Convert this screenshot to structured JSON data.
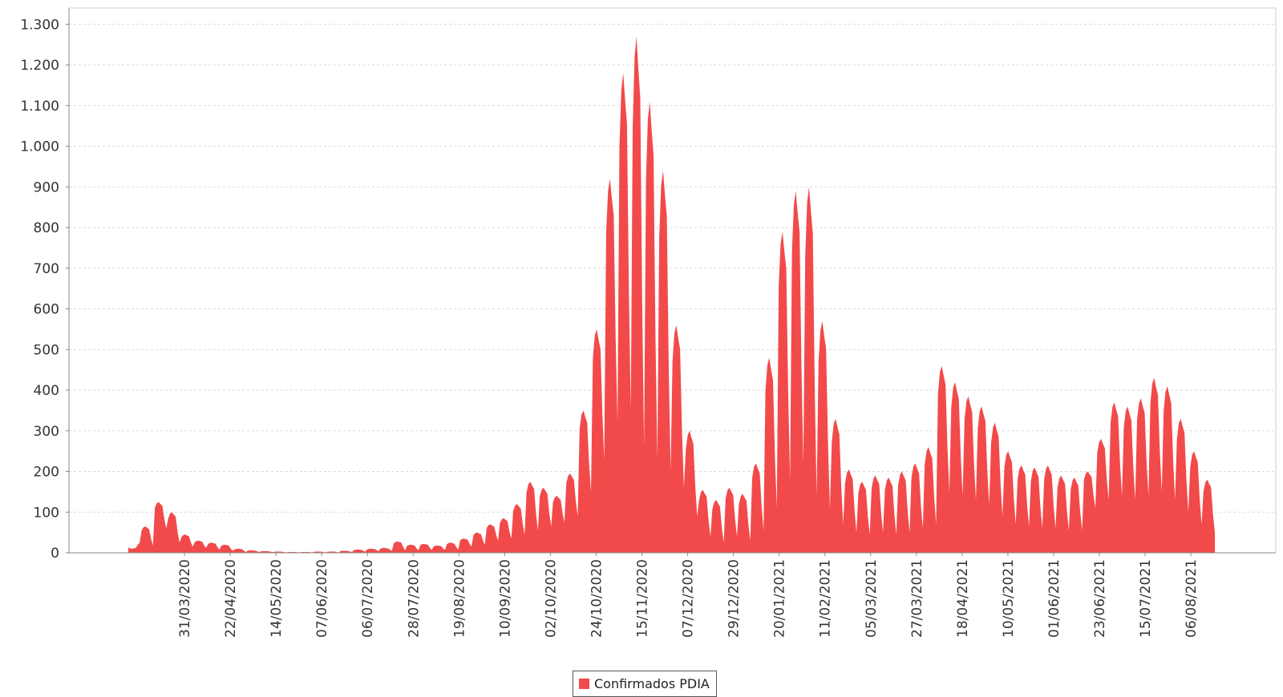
{
  "chart_data": {
    "type": "area",
    "title": "",
    "xlabel": "",
    "ylabel": "",
    "ylim": [
      0,
      1300
    ],
    "y_ticks": [
      {
        "value": 0,
        "label": "0"
      },
      {
        "value": 100,
        "label": "100"
      },
      {
        "value": 200,
        "label": "200"
      },
      {
        "value": 300,
        "label": "300"
      },
      {
        "value": 400,
        "label": "400"
      },
      {
        "value": 500,
        "label": "500"
      },
      {
        "value": 600,
        "label": "600"
      },
      {
        "value": 700,
        "label": "700"
      },
      {
        "value": 800,
        "label": "800"
      },
      {
        "value": 900,
        "label": "900"
      },
      {
        "value": 1000,
        "label": "1.000"
      },
      {
        "value": 1100,
        "label": "1.100"
      },
      {
        "value": 1200,
        "label": "1.200"
      },
      {
        "value": 1300,
        "label": "1.300"
      }
    ],
    "x_tick_labels": [
      "31/03/2020",
      "22/04/2020",
      "14/05/2020",
      "07/06/2020",
      "06/07/2020",
      "28/07/2020",
      "19/08/2020",
      "10/09/2020",
      "02/10/2020",
      "24/10/2020",
      "15/11/2020",
      "07/12/2020",
      "29/12/2020",
      "20/01/2021",
      "11/02/2021",
      "05/03/2021",
      "27/03/2021",
      "18/04/2021",
      "10/05/2021",
      "01/06/2021",
      "23/06/2021",
      "15/07/2021",
      "06/08/2021"
    ],
    "grid": true,
    "legend_position": "bottom-center",
    "series": [
      {
        "name": "Confirmados PDIA",
        "color": "#f24a4a",
        "weekday_values": [
          [
            10,
            25
          ],
          [
            65,
            18
          ],
          [
            125,
            60
          ],
          [
            100,
            25
          ],
          [
            45,
            15
          ],
          [
            30,
            12
          ],
          [
            25,
            8
          ],
          [
            20,
            5
          ],
          [
            10,
            2
          ],
          [
            6,
            2
          ],
          [
            4,
            2
          ],
          [
            3,
            1
          ],
          [
            2,
            1
          ],
          [
            2,
            1
          ],
          [
            3,
            1
          ],
          [
            3,
            1
          ],
          [
            5,
            2
          ],
          [
            8,
            3
          ],
          [
            10,
            4
          ],
          [
            12,
            5
          ],
          [
            28,
            6
          ],
          [
            20,
            6
          ],
          [
            22,
            7
          ],
          [
            18,
            7
          ],
          [
            25,
            8
          ],
          [
            35,
            15
          ],
          [
            50,
            20
          ],
          [
            70,
            30
          ],
          [
            85,
            35
          ],
          [
            120,
            45
          ],
          [
            175,
            55
          ],
          [
            160,
            65
          ],
          [
            140,
            75
          ],
          [
            195,
            90
          ],
          [
            350,
            150
          ],
          [
            550,
            230
          ],
          [
            920,
            320
          ],
          [
            1180,
            350
          ],
          [
            1270,
            260
          ],
          [
            1110,
            230
          ],
          [
            940,
            200
          ],
          [
            560,
            160
          ],
          [
            300,
            90
          ],
          [
            155,
            40
          ],
          [
            130,
            25
          ],
          [
            160,
            40
          ],
          [
            145,
            30
          ],
          [
            220,
            55
          ],
          [
            480,
            110
          ],
          [
            790,
            180
          ],
          [
            890,
            220
          ],
          [
            900,
            140
          ],
          [
            570,
            110
          ],
          [
            330,
            70
          ],
          [
            205,
            50
          ],
          [
            175,
            45
          ],
          [
            190,
            50
          ],
          [
            185,
            45
          ],
          [
            200,
            50
          ],
          [
            220,
            60
          ],
          [
            260,
            70
          ],
          [
            460,
            150
          ],
          [
            420,
            140
          ],
          [
            385,
            130
          ],
          [
            360,
            120
          ],
          [
            320,
            90
          ],
          [
            250,
            70
          ],
          [
            215,
            65
          ],
          [
            210,
            60
          ],
          [
            215,
            60
          ],
          [
            190,
            55
          ],
          [
            185,
            55
          ],
          [
            200,
            110
          ],
          [
            280,
            130
          ],
          [
            370,
            140
          ],
          [
            360,
            130
          ],
          [
            380,
            140
          ],
          [
            430,
            150
          ],
          [
            410,
            130
          ],
          [
            330,
            100
          ],
          [
            250,
            70
          ],
          [
            180,
            50
          ]
        ]
      }
    ]
  },
  "legend": {
    "label": "Confirmados PDIA"
  }
}
